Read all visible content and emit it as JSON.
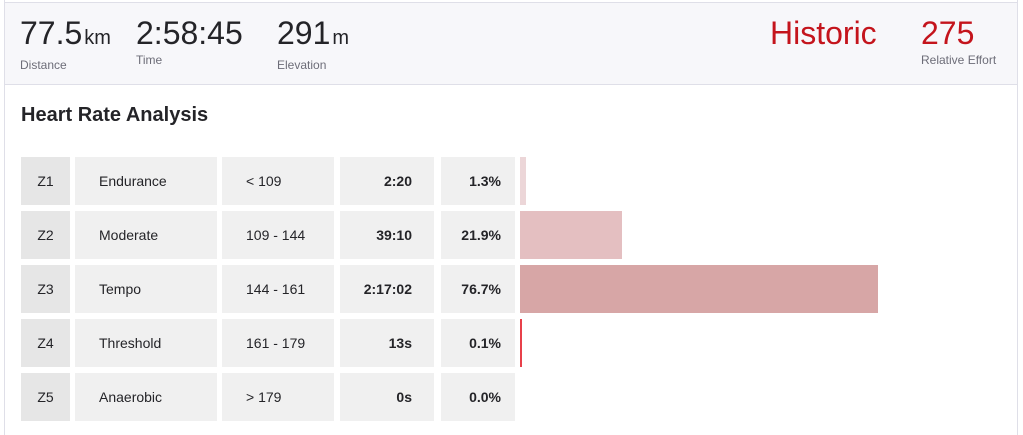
{
  "stats": [
    {
      "value": "77.5",
      "unit": "km",
      "label": "Distance"
    },
    {
      "value": "2:58:45",
      "unit": "",
      "label": "Time"
    },
    {
      "value": "291",
      "unit": "m",
      "label": "Elevation"
    }
  ],
  "effort": {
    "level": "Historic",
    "value": "275",
    "label": "Relative Effort"
  },
  "title": "Heart Rate Analysis",
  "zones": [
    {
      "zone": "Z1",
      "name": "Endurance",
      "range": "< 109",
      "time": "2:20",
      "percent": "1.3%",
      "pct": 1.3,
      "color": "#ecd6d8"
    },
    {
      "zone": "Z2",
      "name": "Moderate",
      "range": "109 - 144",
      "time": "39:10",
      "percent": "21.9%",
      "pct": 21.9,
      "color": "#e4bfc1"
    },
    {
      "zone": "Z3",
      "name": "Tempo",
      "range": "144 - 161",
      "time": "2:17:02",
      "percent": "76.7%",
      "pct": 76.7,
      "color": "#d7a6a6"
    },
    {
      "zone": "Z4",
      "name": "Threshold",
      "range": "161 - 179",
      "time": "13s",
      "percent": "0.1%",
      "pct": 0.1,
      "color": "#e8404a"
    },
    {
      "zone": "Z5",
      "name": "Anaerobic",
      "range": "> 179",
      "time": "0s",
      "percent": "0.0%",
      "pct": 0,
      "color": "#e8404a"
    }
  ]
}
